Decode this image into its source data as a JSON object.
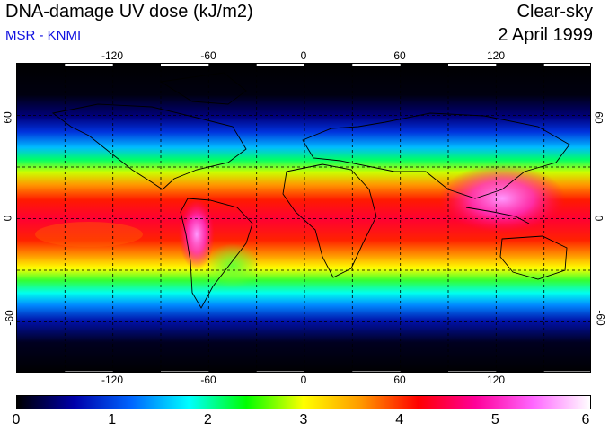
{
  "header": {
    "title": "DNA-damage UV dose (kJ/m2)",
    "subtitle": "MSR - KNMI",
    "condition": "Clear-sky",
    "date": "2 April 1999"
  },
  "colors": {
    "subtitle": "#1010e0",
    "background_polar": "#000000"
  },
  "map": {
    "projection": "equirectangular",
    "lon_range": [
      -180,
      180
    ],
    "lat_range": [
      -90,
      90
    ],
    "gridlines": "dashed",
    "lon_ticks_top": [
      "-120",
      "-60",
      "0",
      "60",
      "120"
    ],
    "lon_ticks_bottom": [
      "-120",
      "-60",
      "0",
      "60",
      "120"
    ],
    "lat_ticks_left": [
      "60",
      "0",
      "-60"
    ],
    "lat_ticks_right": [
      "60",
      "0",
      "-60"
    ]
  },
  "colorbar": {
    "ticks": [
      "0",
      "1",
      "2",
      "3",
      "4",
      "5",
      "6"
    ],
    "range": [
      0,
      6
    ],
    "palette": [
      "#000000",
      "#0000aa",
      "#0066ff",
      "#00ffff",
      "#00ff00",
      "#ffff00",
      "#ff9900",
      "#ff0000",
      "#ff0099",
      "#ff66ff",
      "#ffffff"
    ]
  }
}
